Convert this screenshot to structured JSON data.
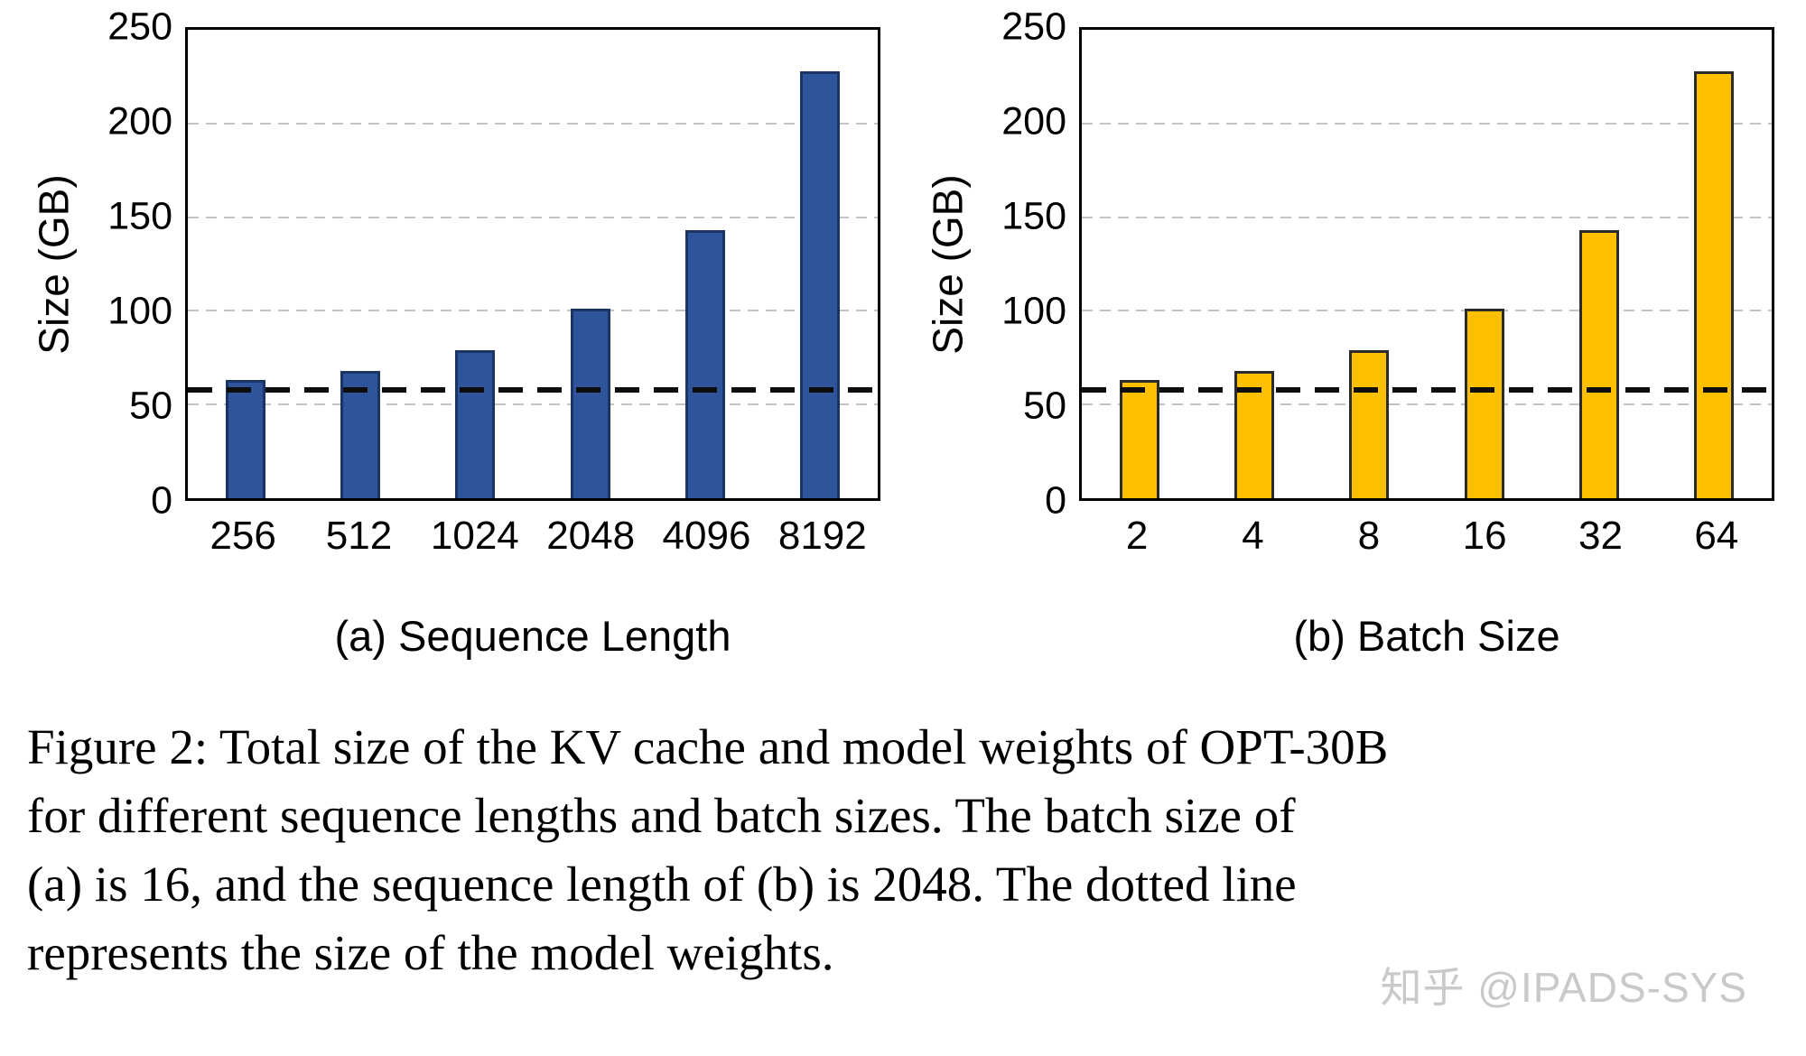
{
  "figure": {
    "caption_lines": [
      "Figure 2: Total size of the KV cache and model weights of OPT-30B",
      "for different sequence lengths and batch sizes. The batch size of",
      "(a) is 16, and the sequence length of (b) is 2048. The dotted line",
      "represents the size of the model weights."
    ],
    "watermark": "知乎 @IPADS-SYS"
  },
  "chart_data": [
    {
      "type": "bar",
      "title": "(a) Sequence Length",
      "ylabel": "Size (GB)",
      "categories": [
        "256",
        "512",
        "1024",
        "2048",
        "4096",
        "8192"
      ],
      "values": [
        63,
        68,
        79,
        101,
        143,
        228
      ],
      "ylim": [
        0,
        250
      ],
      "yticks": [
        0,
        50,
        100,
        150,
        200,
        250
      ],
      "ref_line": 58,
      "ref_line_meaning": "model weights size",
      "bar_color": "#2e559b",
      "bar_border": "#1a3463",
      "grid": true,
      "legend": "none"
    },
    {
      "type": "bar",
      "title": "(b) Batch Size",
      "ylabel": "Size (GB)",
      "categories": [
        "2",
        "4",
        "8",
        "16",
        "32",
        "64"
      ],
      "values": [
        63,
        68,
        79,
        101,
        143,
        228
      ],
      "ylim": [
        0,
        250
      ],
      "yticks": [
        0,
        50,
        100,
        150,
        200,
        250
      ],
      "ref_line": 58,
      "ref_line_meaning": "model weights size",
      "bar_color": "#ffc000",
      "bar_border": "#2b2b2b",
      "grid": true,
      "legend": "none"
    }
  ]
}
